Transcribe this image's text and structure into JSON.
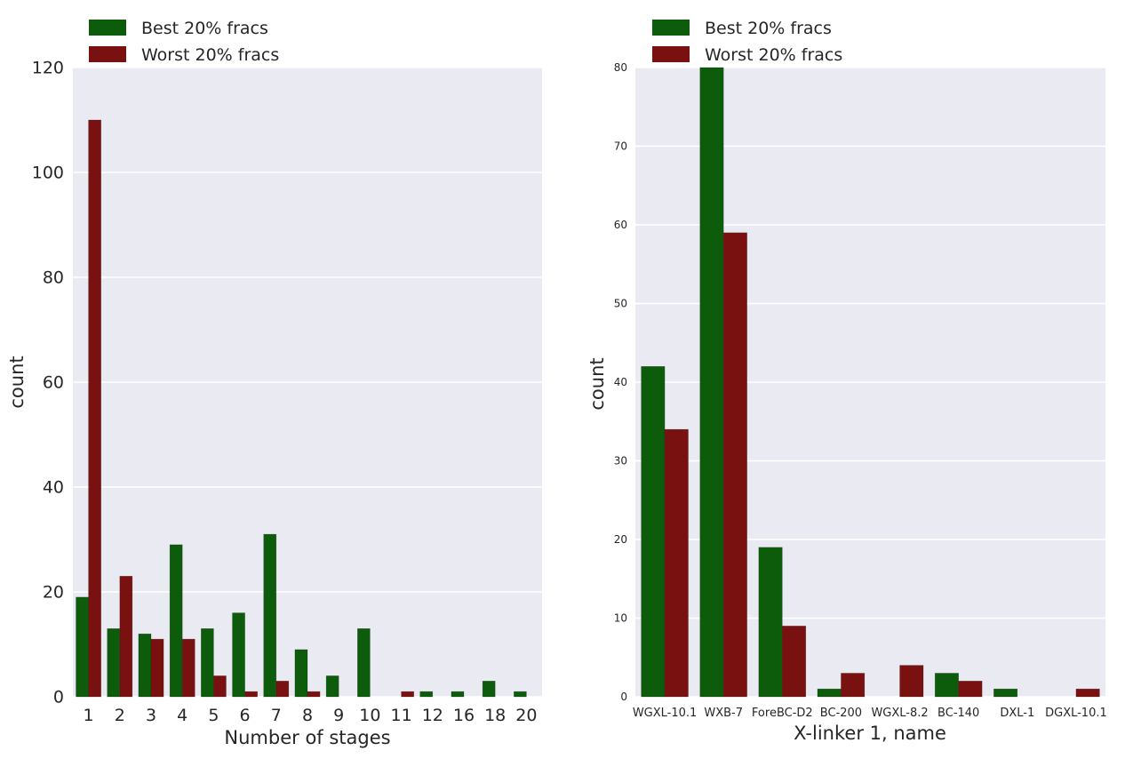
{
  "colors": {
    "best": "#0c5c0c",
    "worst": "#7a1111",
    "plot_bg": "#eaeaf2",
    "grid": "#ffffff"
  },
  "chart_data": [
    {
      "type": "bar",
      "categories": [
        "1",
        "2",
        "3",
        "4",
        "5",
        "6",
        "7",
        "8",
        "9",
        "10",
        "11",
        "12",
        "16",
        "18",
        "20"
      ],
      "series": [
        {
          "name": "Best 20% fracs",
          "values": [
            19,
            13,
            12,
            29,
            13,
            16,
            31,
            9,
            4,
            13,
            0,
            1,
            1,
            3,
            1
          ]
        },
        {
          "name": "Worst 20% fracs",
          "values": [
            110,
            23,
            11,
            11,
            4,
            1,
            3,
            1,
            0,
            0,
            1,
            0,
            0,
            0,
            0
          ]
        }
      ],
      "xlabel": "Number of stages",
      "ylabel": "count",
      "ylim": [
        0,
        120
      ],
      "yticks": [
        0,
        20,
        40,
        60,
        80,
        100,
        120
      ],
      "grid": true,
      "legend": "top-left, above plot"
    },
    {
      "type": "bar",
      "categories": [
        "WGXL-10.1",
        "WXB-7",
        "ForeBC-D2",
        "BC-200",
        "WGXL-8.2",
        "BC-140",
        "DXL-1",
        "DGXL-10.1"
      ],
      "series": [
        {
          "name": "Best 20% fracs",
          "values": [
            42,
            80,
            19,
            1,
            0,
            3,
            1,
            0
          ]
        },
        {
          "name": "Worst 20% fracs",
          "values": [
            34,
            59,
            9,
            3,
            4,
            2,
            0,
            1
          ]
        }
      ],
      "xlabel": "X-linker 1, name",
      "ylabel": "count",
      "ylim": [
        0,
        80
      ],
      "yticks": [
        0,
        10,
        20,
        30,
        40,
        50,
        60,
        70,
        80
      ],
      "grid": true,
      "legend": "top-left, above plot"
    }
  ]
}
